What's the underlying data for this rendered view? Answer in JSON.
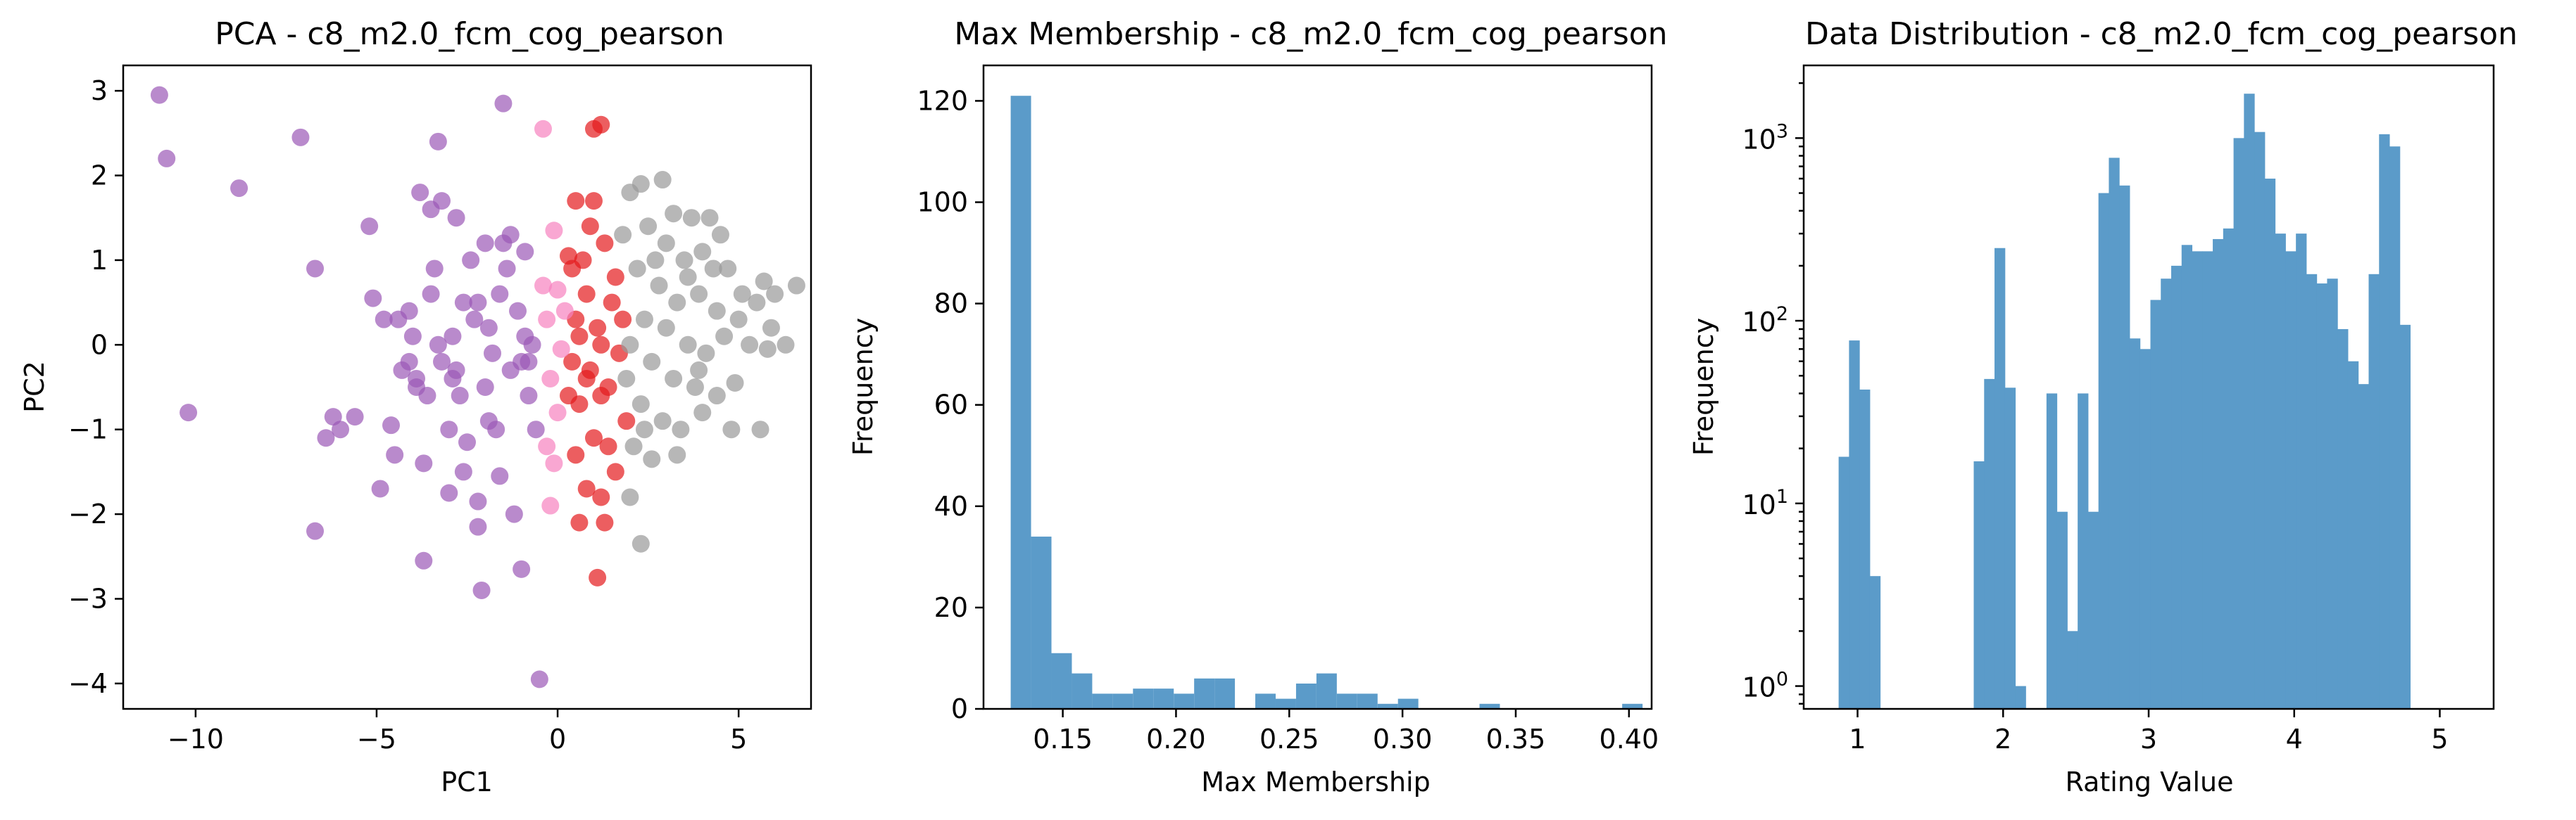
{
  "colors": {
    "purple": "#9b59b6",
    "red": "#e41a1c",
    "pink": "#f781bf",
    "gray": "#999999",
    "bar": "#5b9bc9"
  },
  "chart_data": [
    {
      "type": "scatter",
      "title": "PCA - c8_m2.0_fcm_cog_pearson",
      "xlabel": "PC1",
      "ylabel": "PC2",
      "xlim": [
        -12,
        7.0
      ],
      "ylim": [
        -4.3,
        3.3
      ],
      "xticks": [
        -10,
        -5,
        0,
        5
      ],
      "yticks": [
        -4,
        -3,
        -2,
        -1,
        0,
        1,
        2,
        3
      ],
      "grid": false,
      "series": [
        {
          "color_key": "purple",
          "points": [
            [
              -11.0,
              2.95
            ],
            [
              -10.8,
              2.2
            ],
            [
              -10.2,
              -0.8
            ],
            [
              -8.8,
              1.85
            ],
            [
              -7.1,
              2.45
            ],
            [
              -6.7,
              0.9
            ],
            [
              -6.7,
              -2.2
            ],
            [
              -6.4,
              -1.1
            ],
            [
              -6.2,
              -0.85
            ],
            [
              -6.0,
              -1.0
            ],
            [
              -5.6,
              -0.85
            ],
            [
              -5.2,
              1.4
            ],
            [
              -5.1,
              0.55
            ],
            [
              -4.9,
              -1.7
            ],
            [
              -4.8,
              0.3
            ],
            [
              -4.6,
              -0.95
            ],
            [
              -4.4,
              0.3
            ],
            [
              -4.3,
              -0.3
            ],
            [
              -4.1,
              0.4
            ],
            [
              -4.0,
              0.1
            ],
            [
              -3.9,
              -0.4
            ],
            [
              -3.8,
              1.8
            ],
            [
              -3.7,
              -2.55
            ],
            [
              -3.7,
              -1.4
            ],
            [
              -3.6,
              -0.6
            ],
            [
              -3.5,
              1.6
            ],
            [
              -3.4,
              0.9
            ],
            [
              -3.3,
              2.4
            ],
            [
              -3.2,
              1.7
            ],
            [
              -3.2,
              -0.2
            ],
            [
              -3.0,
              -1.0
            ],
            [
              -3.0,
              -1.75
            ],
            [
              -2.9,
              0.1
            ],
            [
              -2.8,
              1.5
            ],
            [
              -2.8,
              -0.3
            ],
            [
              -2.7,
              -0.6
            ],
            [
              -2.6,
              0.5
            ],
            [
              -2.5,
              -1.15
            ],
            [
              -2.4,
              1.0
            ],
            [
              -2.3,
              0.3
            ],
            [
              -2.2,
              -1.85
            ],
            [
              -2.2,
              -2.15
            ],
            [
              -2.1,
              -2.9
            ],
            [
              -2.0,
              1.2
            ],
            [
              -1.9,
              0.2
            ],
            [
              -1.8,
              -0.1
            ],
            [
              -1.7,
              -1.0
            ],
            [
              -1.6,
              -1.55
            ],
            [
              -1.5,
              1.2
            ],
            [
              -1.5,
              2.85
            ],
            [
              -1.4,
              0.9
            ],
            [
              -1.3,
              -0.3
            ],
            [
              -1.2,
              -2.0
            ],
            [
              -1.1,
              0.4
            ],
            [
              -1.0,
              -0.2
            ],
            [
              -1.0,
              -2.65
            ],
            [
              -0.9,
              1.1
            ],
            [
              -0.8,
              -0.6
            ],
            [
              -0.7,
              0.0
            ],
            [
              -0.6,
              -1.0
            ],
            [
              -0.5,
              -3.95
            ],
            [
              -3.9,
              -0.5
            ],
            [
              -2.6,
              -1.5
            ],
            [
              -4.1,
              -0.2
            ],
            [
              -1.3,
              1.3
            ],
            [
              -0.8,
              -0.2
            ],
            [
              -1.9,
              -0.9
            ],
            [
              -3.5,
              0.6
            ],
            [
              -2.9,
              -0.4
            ],
            [
              -1.6,
              0.6
            ],
            [
              -2.2,
              0.5
            ],
            [
              -0.9,
              0.1
            ],
            [
              -4.5,
              -1.3
            ],
            [
              -3.3,
              0.0
            ],
            [
              -2.0,
              -0.5
            ]
          ]
        },
        {
          "color_key": "red",
          "points": [
            [
              0.3,
              1.05
            ],
            [
              0.5,
              1.7
            ],
            [
              1.0,
              2.55
            ],
            [
              1.2,
              2.6
            ],
            [
              1.0,
              1.7
            ],
            [
              0.7,
              1.0
            ],
            [
              0.4,
              0.9
            ],
            [
              1.3,
              1.2
            ],
            [
              0.8,
              0.6
            ],
            [
              1.1,
              0.2
            ],
            [
              0.6,
              0.1
            ],
            [
              0.4,
              -0.2
            ],
            [
              0.8,
              -0.4
            ],
            [
              1.2,
              -0.6
            ],
            [
              0.6,
              -0.7
            ],
            [
              1.0,
              -1.1
            ],
            [
              1.4,
              -1.2
            ],
            [
              0.5,
              -1.3
            ],
            [
              1.6,
              -1.5
            ],
            [
              0.8,
              -1.7
            ],
            [
              1.2,
              -1.8
            ],
            [
              0.6,
              -2.1
            ],
            [
              1.3,
              -2.1
            ],
            [
              1.1,
              -2.75
            ],
            [
              1.5,
              0.5
            ],
            [
              1.7,
              -0.1
            ],
            [
              1.4,
              -0.5
            ],
            [
              0.9,
              -0.3
            ],
            [
              1.8,
              0.3
            ],
            [
              0.3,
              -0.6
            ],
            [
              1.6,
              0.8
            ],
            [
              0.9,
              1.4
            ],
            [
              1.9,
              -0.9
            ],
            [
              1.2,
              0.0
            ],
            [
              0.5,
              0.3
            ]
          ]
        },
        {
          "color_key": "pink",
          "points": [
            [
              -0.4,
              2.55
            ],
            [
              -0.1,
              1.35
            ],
            [
              0.0,
              0.65
            ],
            [
              -0.3,
              0.3
            ],
            [
              -0.2,
              -0.4
            ],
            [
              0.2,
              0.4
            ],
            [
              0.1,
              -0.05
            ],
            [
              -0.1,
              -1.4
            ],
            [
              -0.2,
              -1.9
            ],
            [
              -0.3,
              -1.2
            ],
            [
              -0.4,
              0.7
            ],
            [
              0.0,
              -0.8
            ]
          ]
        },
        {
          "color_key": "gray",
          "points": [
            [
              2.3,
              1.9
            ],
            [
              2.9,
              1.95
            ],
            [
              3.2,
              1.55
            ],
            [
              3.7,
              1.5
            ],
            [
              4.2,
              1.5
            ],
            [
              4.5,
              1.3
            ],
            [
              2.0,
              1.8
            ],
            [
              2.5,
              1.4
            ],
            [
              3.0,
              1.2
            ],
            [
              3.5,
              1.0
            ],
            [
              4.0,
              1.1
            ],
            [
              4.7,
              0.9
            ],
            [
              5.7,
              0.75
            ],
            [
              6.0,
              0.6
            ],
            [
              6.6,
              0.7
            ],
            [
              2.2,
              0.9
            ],
            [
              2.8,
              0.7
            ],
            [
              3.3,
              0.5
            ],
            [
              3.9,
              0.6
            ],
            [
              4.4,
              0.4
            ],
            [
              5.0,
              0.3
            ],
            [
              5.5,
              0.5
            ],
            [
              5.9,
              0.2
            ],
            [
              2.4,
              0.3
            ],
            [
              3.0,
              0.2
            ],
            [
              3.6,
              0.0
            ],
            [
              4.1,
              -0.1
            ],
            [
              4.6,
              0.1
            ],
            [
              5.3,
              0.0
            ],
            [
              5.8,
              -0.05
            ],
            [
              6.3,
              0.0
            ],
            [
              2.0,
              0.0
            ],
            [
              2.6,
              -0.2
            ],
            [
              3.2,
              -0.4
            ],
            [
              3.8,
              -0.5
            ],
            [
              4.4,
              -0.6
            ],
            [
              4.9,
              -0.45
            ],
            [
              2.3,
              -0.7
            ],
            [
              2.9,
              -0.9
            ],
            [
              3.4,
              -1.0
            ],
            [
              4.0,
              -0.8
            ],
            [
              4.8,
              -1.0
            ],
            [
              5.6,
              -1.0
            ],
            [
              2.1,
              -1.2
            ],
            [
              2.6,
              -1.35
            ],
            [
              3.3,
              -1.3
            ],
            [
              2.0,
              -1.8
            ],
            [
              2.3,
              -2.35
            ],
            [
              1.9,
              -0.4
            ],
            [
              3.6,
              0.8
            ],
            [
              2.7,
              1.0
            ],
            [
              4.3,
              0.9
            ],
            [
              5.1,
              0.6
            ],
            [
              2.4,
              -1.0
            ],
            [
              3.9,
              -0.3
            ],
            [
              1.8,
              1.3
            ]
          ]
        }
      ]
    },
    {
      "type": "bar",
      "title": "Max Membership - c8_m2.0_fcm_cog_pearson",
      "xlabel": "Max Membership",
      "ylabel": "Frequency",
      "xlim": [
        0.115,
        0.41
      ],
      "ylim": [
        0,
        127
      ],
      "xticks": [
        0.15,
        0.2,
        0.25,
        0.3,
        0.35,
        0.4
      ],
      "yticks": [
        0,
        20,
        40,
        60,
        80,
        100,
        120
      ],
      "bin_start": 0.127,
      "bin_width": 0.009,
      "values": [
        121,
        34,
        11,
        7,
        3,
        3,
        4,
        4,
        3,
        6,
        6,
        0,
        3,
        2,
        5,
        7,
        3,
        3,
        1,
        2,
        0,
        0,
        0,
        1,
        0,
        0,
        0,
        0,
        0,
        0,
        1
      ]
    },
    {
      "type": "bar",
      "title": "Data Distribution - c8_m2.0_fcm_cog_pearson",
      "xlabel": "Rating Value",
      "ylabel": "Frequency",
      "log_y": true,
      "xlim": [
        0.63,
        5.37
      ],
      "ylim": [
        0.75,
        2500
      ],
      "xticks": [
        1,
        2,
        3,
        4,
        5
      ],
      "yticks": [
        {
          "value": 1,
          "base": "10",
          "exp": "0"
        },
        {
          "value": 10,
          "base": "10",
          "exp": "1"
        },
        {
          "value": 100,
          "base": "10",
          "exp": "2"
        },
        {
          "value": 1000,
          "base": "10",
          "exp": "3"
        }
      ],
      "bin_start": 0.87,
      "bin_width": 0.0714,
      "values": [
        18,
        78,
        42,
        4,
        0,
        0,
        0,
        0,
        0,
        0,
        0,
        0,
        0,
        17,
        48,
        250,
        43,
        1,
        0,
        0,
        40,
        9,
        2,
        40,
        9,
        500,
        780,
        550,
        80,
        70,
        130,
        170,
        200,
        260,
        240,
        240,
        280,
        320,
        1000,
        1750,
        1080,
        600,
        300,
        240,
        300,
        180,
        160,
        170,
        90,
        60,
        45,
        180,
        1050,
        900,
        95
      ]
    }
  ]
}
